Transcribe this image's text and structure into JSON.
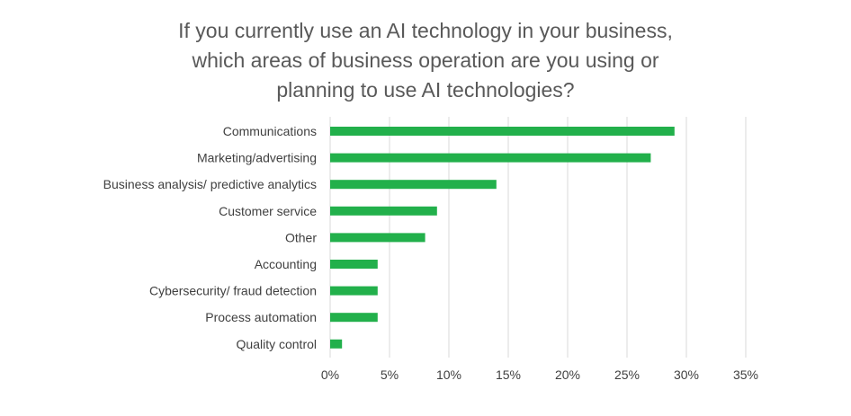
{
  "chart_data": {
    "type": "bar",
    "orientation": "horizontal",
    "title_lines": [
      "If you currently use an AI technology in your business,",
      "which areas of business operation are you using or",
      "planning to use AI technologies?"
    ],
    "categories": [
      "Communications",
      "Marketing/advertising",
      "Business analysis/ predictive analytics",
      "Customer service",
      "Other",
      "Accounting",
      "Cybersecurity/ fraud detection",
      "Process automation",
      "Quality control"
    ],
    "values": [
      29,
      27,
      14,
      9,
      8,
      4,
      4,
      4,
      1
    ],
    "xlim": [
      0,
      35
    ],
    "xticks": [
      0,
      5,
      10,
      15,
      20,
      25,
      30,
      35
    ],
    "tick_labels": [
      "0%",
      "5%",
      "10%",
      "15%",
      "20%",
      "25%",
      "30%",
      "35%"
    ],
    "grid": "vertical",
    "legend": "none",
    "bar_color": "#22b04b",
    "grid_color": "#d9d9d9",
    "text_color": "#404040",
    "title_color": "#595959"
  }
}
